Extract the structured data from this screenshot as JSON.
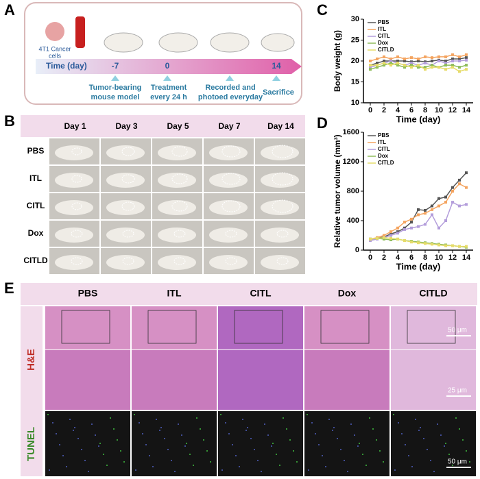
{
  "panel_a": {
    "letter": "A",
    "cells_label": [
      "4T1 Cancer",
      "cells"
    ],
    "time_label": "Time (day)",
    "days": [
      "-7",
      "0",
      "14"
    ],
    "steps": [
      [
        "Tumor-bearing",
        "mouse model"
      ],
      [
        "Treatment",
        "every 24 h"
      ],
      [
        "Recorded and",
        "photoed everyday"
      ],
      [
        "Sacrifice"
      ]
    ]
  },
  "panel_b": {
    "letter": "B",
    "days": [
      "Day 1",
      "Day 3",
      "Day 5",
      "Day 7",
      "Day 14"
    ],
    "groups": [
      "PBS",
      "ITL",
      "CITL",
      "Dox",
      "CITLD"
    ]
  },
  "panel_e": {
    "letter": "E",
    "groups": [
      "PBS",
      "ITL",
      "CITL",
      "Dox",
      "CITLD"
    ],
    "rows": [
      "H&E",
      "TUNEL"
    ],
    "scale_bars": [
      "50 μm",
      "25 μm",
      "50 μm"
    ]
  },
  "chart_data": [
    {
      "letter": "C",
      "type": "line",
      "xlabel": "Time (day)",
      "ylabel": "Body weight (g)",
      "x": [
        0,
        1,
        2,
        3,
        4,
        5,
        6,
        7,
        8,
        9,
        10,
        11,
        12,
        13,
        14
      ],
      "xlim": [
        -1,
        15
      ],
      "xticks": [
        0,
        2,
        4,
        6,
        8,
        10,
        12,
        14
      ],
      "ylim": [
        10,
        30
      ],
      "yticks": [
        10,
        15,
        20,
        25,
        30
      ],
      "legend": "top-left",
      "series": [
        {
          "name": "PBS",
          "color": "#555555",
          "values": [
            19,
            19.5,
            20,
            20,
            20,
            20,
            19.8,
            20,
            19.8,
            20,
            20.2,
            20,
            20.5,
            20.5,
            20.8
          ]
        },
        {
          "name": "ITL",
          "color": "#f4a460",
          "values": [
            20,
            20.5,
            21,
            20.5,
            21,
            20.5,
            20.8,
            20.5,
            21,
            20.8,
            21,
            21,
            21.5,
            21,
            21.5
          ]
        },
        {
          "name": "CITL",
          "color": "#b39ddb",
          "values": [
            18.5,
            19,
            19.5,
            20,
            19.5,
            19,
            19.5,
            19,
            19.5,
            19,
            20,
            19.5,
            20,
            20,
            20.2
          ]
        },
        {
          "name": "Dox",
          "color": "#8fbc5a",
          "values": [
            18,
            18.5,
            19,
            19.5,
            19,
            18.5,
            19,
            18.5,
            18.5,
            19,
            18.5,
            19,
            19,
            18.5,
            19
          ]
        },
        {
          "name": "CITLD",
          "color": "#e6dc6a",
          "values": [
            19,
            19,
            19.5,
            19,
            19.5,
            19,
            18.5,
            19,
            18,
            18.5,
            18.5,
            18,
            18.5,
            17.5,
            18
          ]
        }
      ]
    },
    {
      "letter": "D",
      "type": "line",
      "xlabel": "Time (day)",
      "ylabel": "Relative tumor volume (mm³)",
      "x": [
        0,
        1,
        2,
        3,
        4,
        5,
        6,
        7,
        8,
        9,
        10,
        11,
        12,
        13,
        14
      ],
      "xlim": [
        -1,
        15
      ],
      "xticks": [
        0,
        2,
        4,
        6,
        8,
        10,
        12,
        14
      ],
      "ylim": [
        0,
        1600
      ],
      "yticks": [
        0,
        400,
        800,
        1200,
        1600
      ],
      "legend": "top-left",
      "series": [
        {
          "name": "PBS",
          "color": "#555555",
          "values": [
            150,
            160,
            180,
            220,
            250,
            300,
            380,
            550,
            540,
            600,
            700,
            720,
            850,
            950,
            1050
          ]
        },
        {
          "name": "ITL",
          "color": "#f4a460",
          "values": [
            150,
            170,
            200,
            250,
            300,
            380,
            420,
            480,
            500,
            550,
            600,
            650,
            800,
            900,
            850
          ]
        },
        {
          "name": "CITL",
          "color": "#b39ddb",
          "values": [
            130,
            150,
            170,
            200,
            230,
            280,
            300,
            320,
            350,
            480,
            300,
            400,
            650,
            600,
            620
          ]
        },
        {
          "name": "Dox",
          "color": "#8fbc5a",
          "values": [
            150,
            160,
            150,
            140,
            150,
            130,
            120,
            110,
            100,
            90,
            80,
            70,
            60,
            50,
            40
          ]
        },
        {
          "name": "CITLD",
          "color": "#e6dc6a",
          "values": [
            150,
            160,
            170,
            160,
            150,
            130,
            110,
            100,
            90,
            80,
            70,
            60,
            60,
            50,
            50
          ]
        }
      ]
    }
  ]
}
